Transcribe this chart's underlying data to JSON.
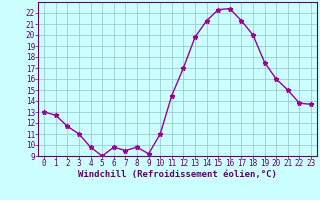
{
  "x": [
    0,
    1,
    2,
    3,
    4,
    5,
    6,
    7,
    8,
    9,
    10,
    11,
    12,
    13,
    14,
    15,
    16,
    17,
    18,
    19,
    20,
    21,
    22,
    23
  ],
  "y": [
    13,
    12.7,
    11.7,
    11.0,
    9.8,
    9.0,
    9.8,
    9.5,
    9.8,
    9.2,
    11.0,
    14.5,
    17.0,
    19.8,
    21.3,
    22.3,
    22.4,
    21.3,
    20.0,
    17.5,
    16.0,
    15.0,
    13.8,
    13.7
  ],
  "line_color": "#990099",
  "marker": "*",
  "bg_color": "#ccffff",
  "grid_color": "#99cccc",
  "axis_label_color": "#660066",
  "tick_label_color": "#660066",
  "xlabel": "Windchill (Refroidissement éolien,°C)",
  "ylim": [
    9,
    23
  ],
  "xlim": [
    -0.5,
    23.5
  ],
  "yticks": [
    9,
    10,
    11,
    12,
    13,
    14,
    15,
    16,
    17,
    18,
    19,
    20,
    21,
    22
  ],
  "xticks": [
    0,
    1,
    2,
    3,
    4,
    5,
    6,
    7,
    8,
    9,
    10,
    11,
    12,
    13,
    14,
    15,
    16,
    17,
    18,
    19,
    20,
    21,
    22,
    23
  ],
  "border_color": "#660066",
  "tick_fontsize": 5.5,
  "xlabel_fontsize": 6.5,
  "marker_size": 3.5,
  "line_width": 1.0
}
